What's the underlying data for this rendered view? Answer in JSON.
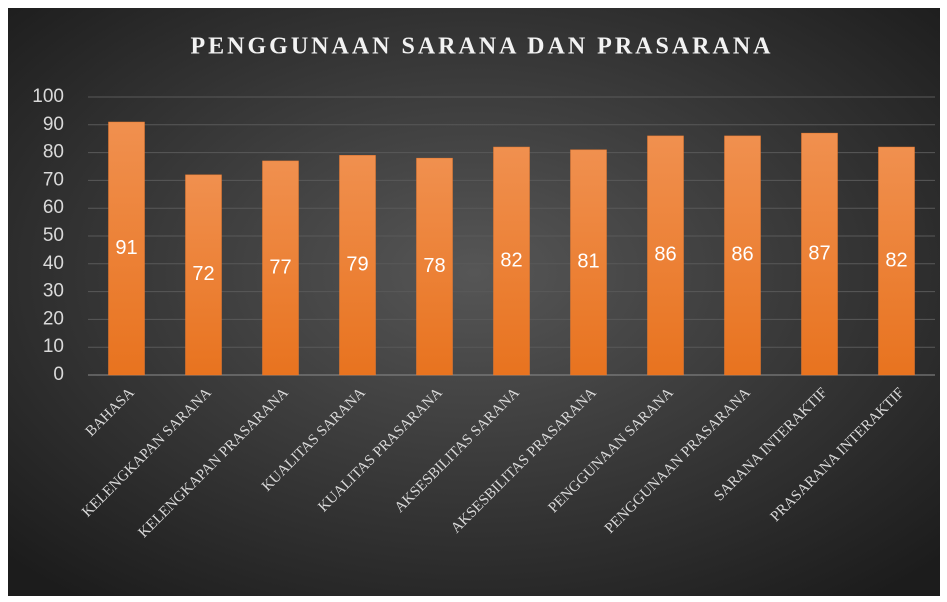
{
  "chart_data": {
    "type": "bar",
    "title": "PENGGUNAAN SARANA DAN PRASARANA",
    "categories": [
      "BAHASA",
      "KELENGKAPAN SARANA",
      "KELENGKAPAN PRASARANA",
      "KUALITAS SARANA",
      "KUALITAS PRASARANA",
      "AKSESBILITAS SARANA",
      "AKSESBILITAS PRASARANA",
      "PENGGUNAAN SARANA",
      "PENGGUNAAN PRASARANA",
      "SARANA INTERAKTIF",
      "PRASARANA INTERAKTIF"
    ],
    "values": [
      91,
      72,
      77,
      79,
      78,
      82,
      81,
      86,
      86,
      87,
      82
    ],
    "color": "#ed7d31",
    "ylim": [
      0,
      100
    ],
    "yticks": [
      0,
      10,
      20,
      30,
      40,
      50,
      60,
      70,
      80,
      90,
      100
    ],
    "grid": true
  }
}
